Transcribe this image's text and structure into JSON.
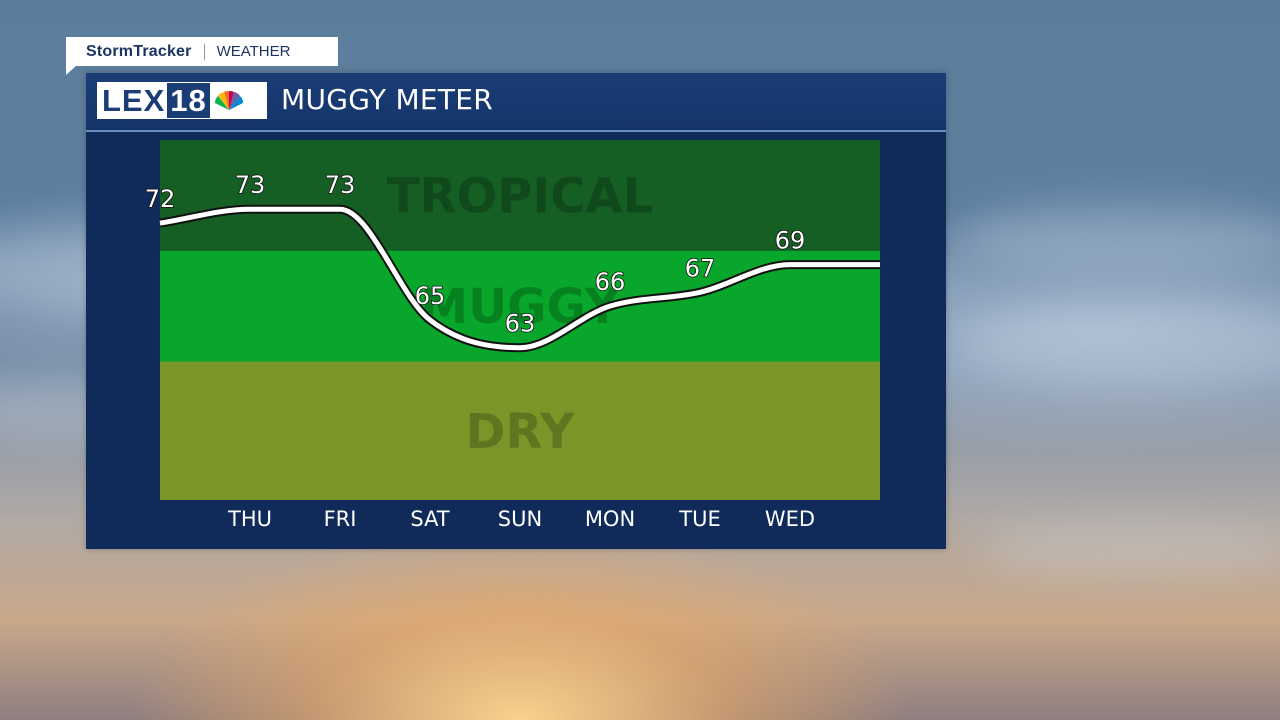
{
  "brand": {
    "name": "StormTracker",
    "section": "WEATHER"
  },
  "header": {
    "logo_text": "LEX",
    "logo_number": "18",
    "title": "MUGGY METER"
  },
  "chart_data": {
    "type": "line",
    "categories": [
      "",
      "THU",
      "FRI",
      "SAT",
      "SUN",
      "MON",
      "TUE",
      "WED",
      ""
    ],
    "values": [
      72,
      73,
      73,
      65,
      63,
      66,
      67,
      69,
      69
    ],
    "value_labels": [
      "72",
      "73",
      "73",
      "65",
      "63",
      "66",
      "67",
      "69",
      ""
    ],
    "xlabels": [
      "THU",
      "FRI",
      "SAT",
      "SUN",
      "MON",
      "TUE",
      "WED"
    ],
    "ylim": [
      52,
      78
    ],
    "zones": [
      {
        "name": "TROPICAL",
        "from": 70,
        "to": 78,
        "color": "#155f24"
      },
      {
        "name": "MUGGY",
        "from": 62,
        "to": 70,
        "color": "#08a62a"
      },
      {
        "name": "DRY",
        "from": 52,
        "to": 62,
        "color": "#7b9628"
      }
    ],
    "line_color": "#ffffff",
    "grid": false
  },
  "colors": {
    "panel": "#102a5a",
    "header": "#1a3d76",
    "accent": "#6e8db8"
  }
}
